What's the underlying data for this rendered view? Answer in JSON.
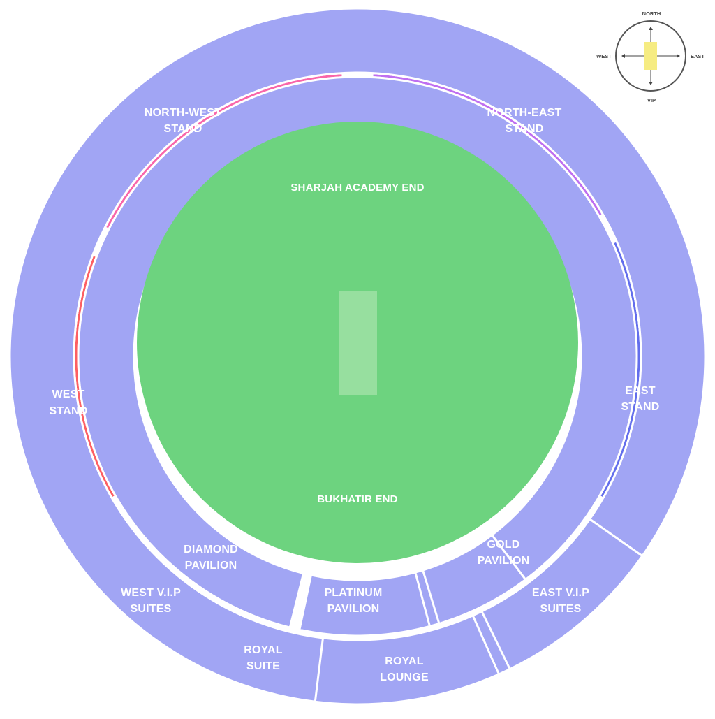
{
  "colors": {
    "ground": "#6dd37f",
    "pitch": "#97df9f",
    "north_west": "#f966aa",
    "north_east": "#bf6ff0",
    "east": "#636eec",
    "west": "#fd5f63",
    "pavilion": "#a1a5f4",
    "compass_pointer": "#f6ec82"
  },
  "ground": {
    "top_end": "SHARJAH ACADEMY END",
    "bottom_end": "BUKHATIR END"
  },
  "stands": {
    "north_west": [
      "NORTH-WEST",
      "STAND"
    ],
    "north_east": [
      "NORTH-EAST",
      "STAND"
    ],
    "east": [
      "EAST",
      "STAND"
    ],
    "west": [
      "WEST",
      "STAND"
    ],
    "diamond_pavilion": [
      "DIAMOND",
      "PAVILION"
    ],
    "platinum_pavilion": [
      "PLATINUM",
      "PAVILION"
    ],
    "gold_pavilion": [
      "GOLD",
      "PAVILION"
    ],
    "west_vip_suites": [
      "WEST V.I.P",
      "SUITES"
    ],
    "royal_suite": [
      "ROYAL",
      "SUITE"
    ],
    "royal_lounge": [
      "ROYAL",
      "LOUNGE"
    ],
    "east_vip_suites": [
      "EAST V.I.P",
      "SUITES"
    ]
  },
  "compass": {
    "north": "NORTH",
    "south": "VIP",
    "east": "EAST",
    "west": "WEST"
  }
}
